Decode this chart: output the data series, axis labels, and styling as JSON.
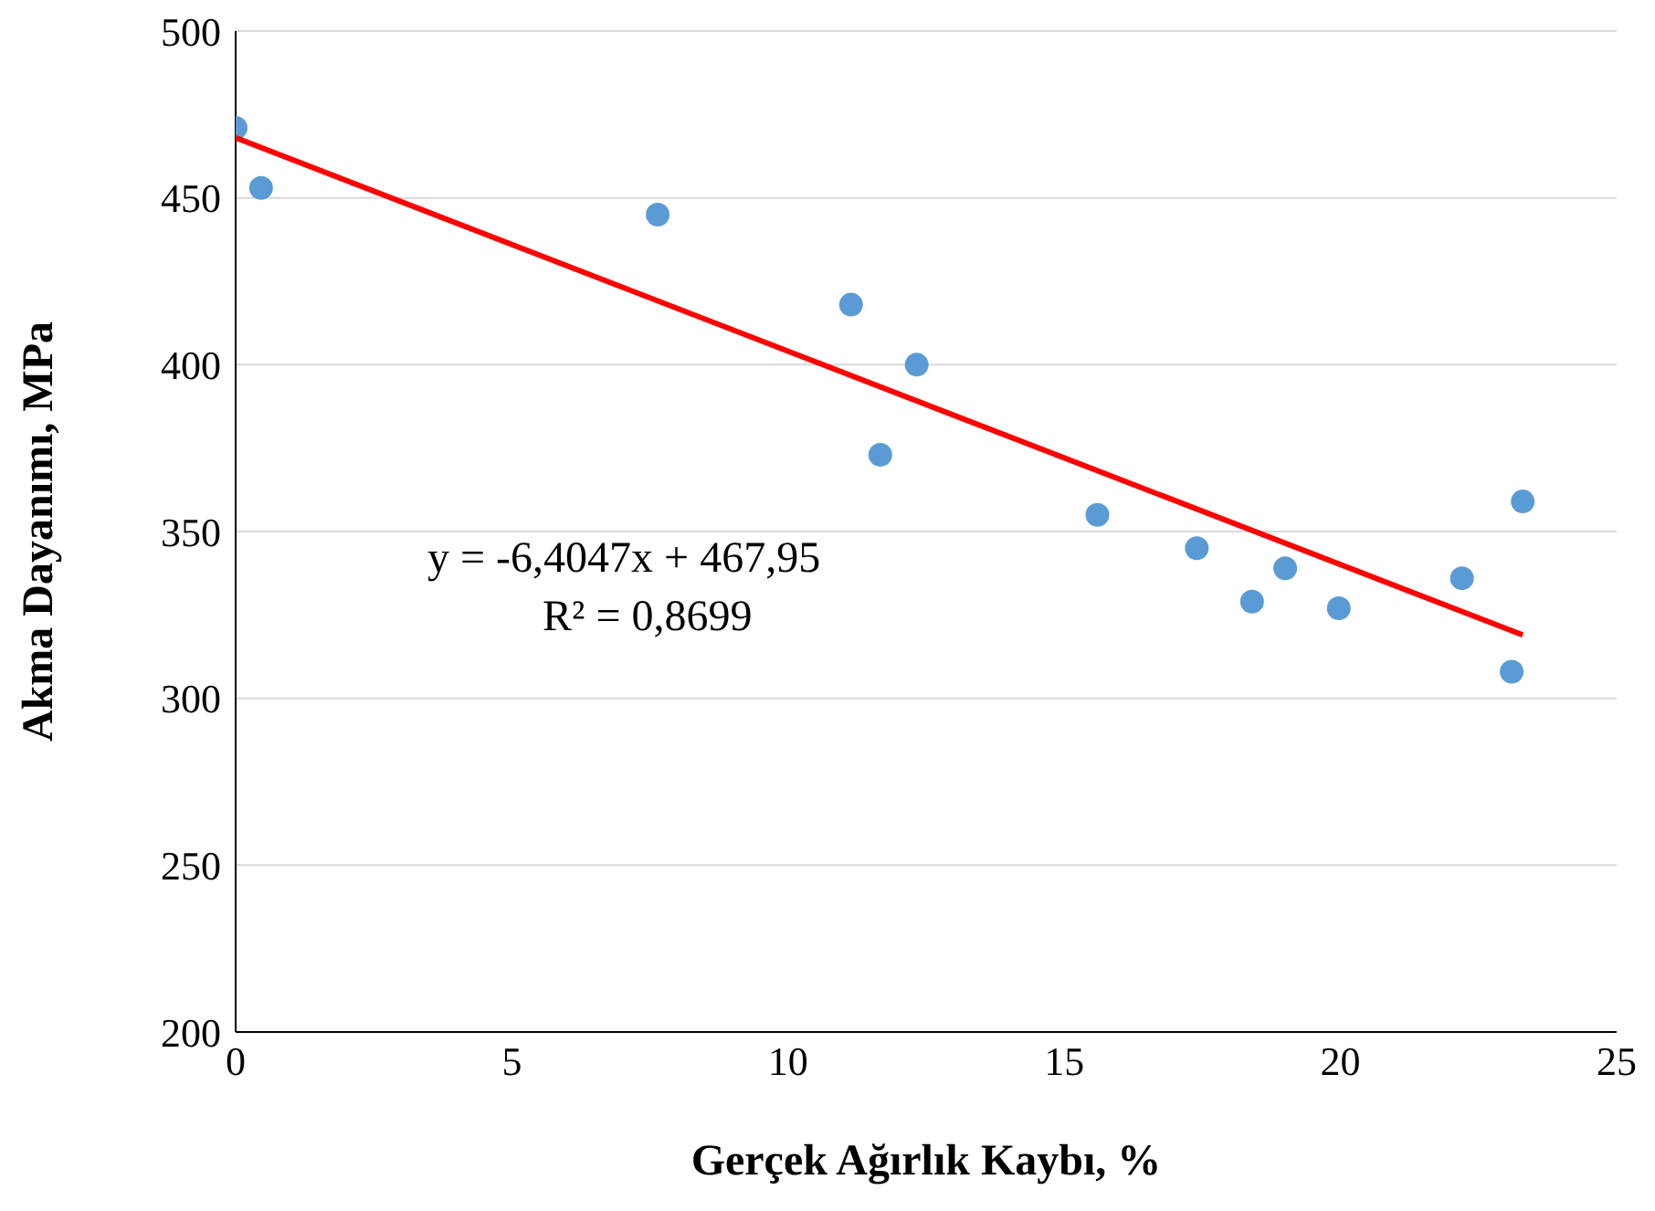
{
  "chart_data": {
    "type": "scatter",
    "xlabel": "Gerçek Ağırlık Kaybı, %",
    "ylabel": "Akma Dayanımı, MPa",
    "x": [
      0,
      0.46,
      7.64,
      11.14,
      11.67,
      12.33,
      15.6,
      17.4,
      18.4,
      19.0,
      19.97,
      22.2,
      23.1,
      23.3
    ],
    "series": [
      {
        "color": "#5b9bd5",
        "marker": "circle",
        "values": [
          471,
          453,
          445,
          418,
          373,
          400,
          355,
          345,
          329,
          339,
          327,
          336,
          308,
          359
        ]
      },
      {
        "type": "line",
        "color": "#ff0000",
        "marker": "none",
        "x": [
          0,
          23.3
        ],
        "values": [
          468,
          319
        ]
      }
    ],
    "annotations": [
      "y = -6,4047x + 467,95",
      "R² = 0,8699"
    ],
    "xlim": [
      0,
      25
    ],
    "xticks": [
      0,
      5,
      10,
      15,
      20,
      25
    ],
    "ylim": [
      200,
      500
    ],
    "yticks": [
      200,
      250,
      300,
      350,
      400,
      450,
      500
    ],
    "grid": "y",
    "legend": false
  }
}
